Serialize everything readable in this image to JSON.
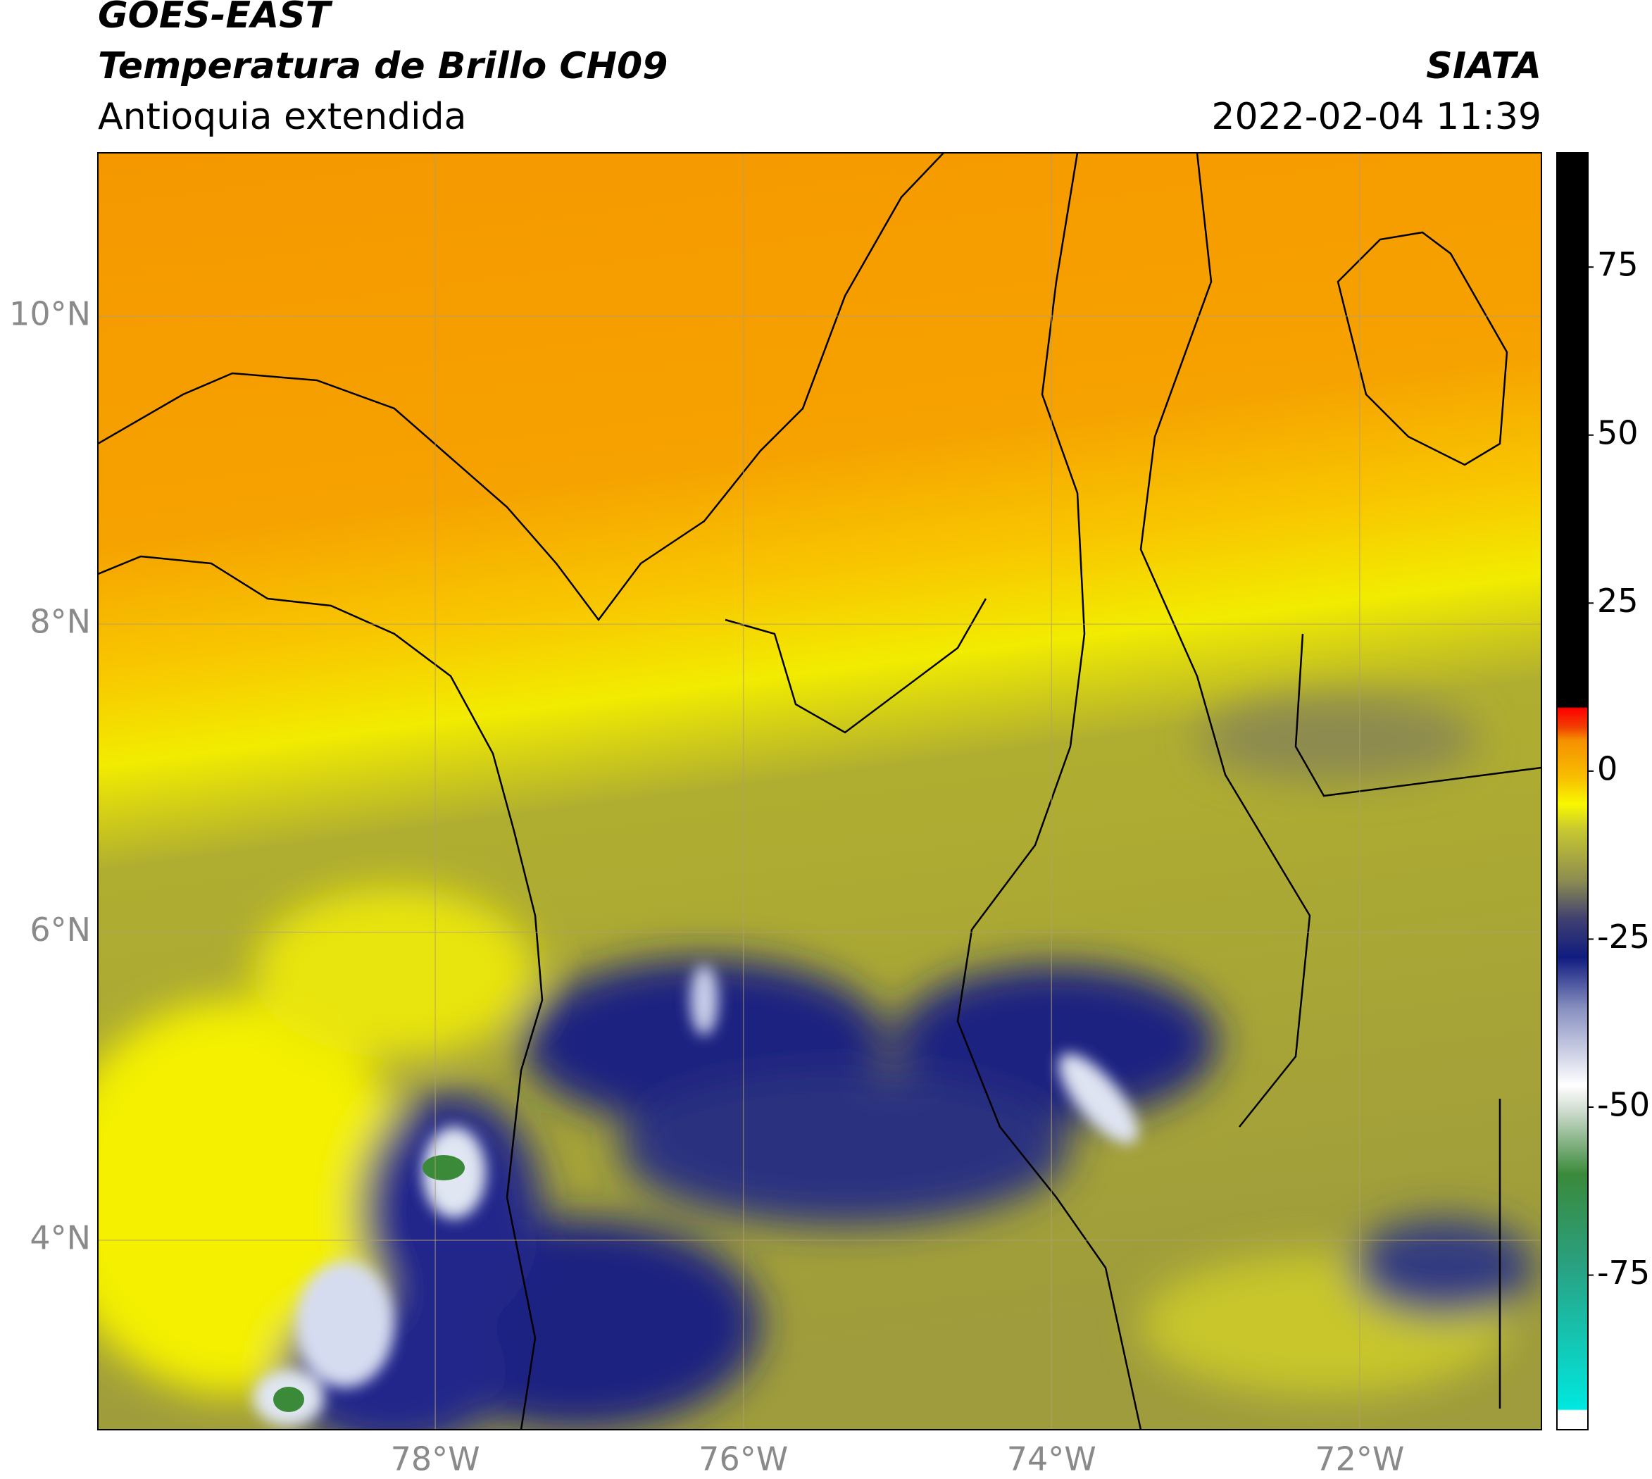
{
  "header": {
    "title": "GOES-EAST",
    "subtitle": "Temperatura de Brillo CH09",
    "region": "Antioquia extendida",
    "source": "SIATA",
    "timestamp": "2022-02-04 11:39"
  },
  "map": {
    "xlim": [
      -80.19,
      -70.82
    ],
    "ylim": [
      2.77,
      11.06
    ],
    "xticks": [
      {
        "value": -78,
        "label": "78°W"
      },
      {
        "value": -76,
        "label": "76°W"
      },
      {
        "value": -74,
        "label": "74°W"
      },
      {
        "value": -72,
        "label": "72°W"
      }
    ],
    "yticks": [
      {
        "value": 4,
        "label": "4°N"
      },
      {
        "value": 6,
        "label": "6°N"
      },
      {
        "value": 8,
        "label": "8°N"
      },
      {
        "value": 10,
        "label": "10°N"
      }
    ],
    "grid": true
  },
  "colorbar": {
    "lim": [
      -98,
      92
    ],
    "ticks": [
      -75,
      -50,
      -25,
      0,
      25,
      50,
      75
    ]
  }
}
